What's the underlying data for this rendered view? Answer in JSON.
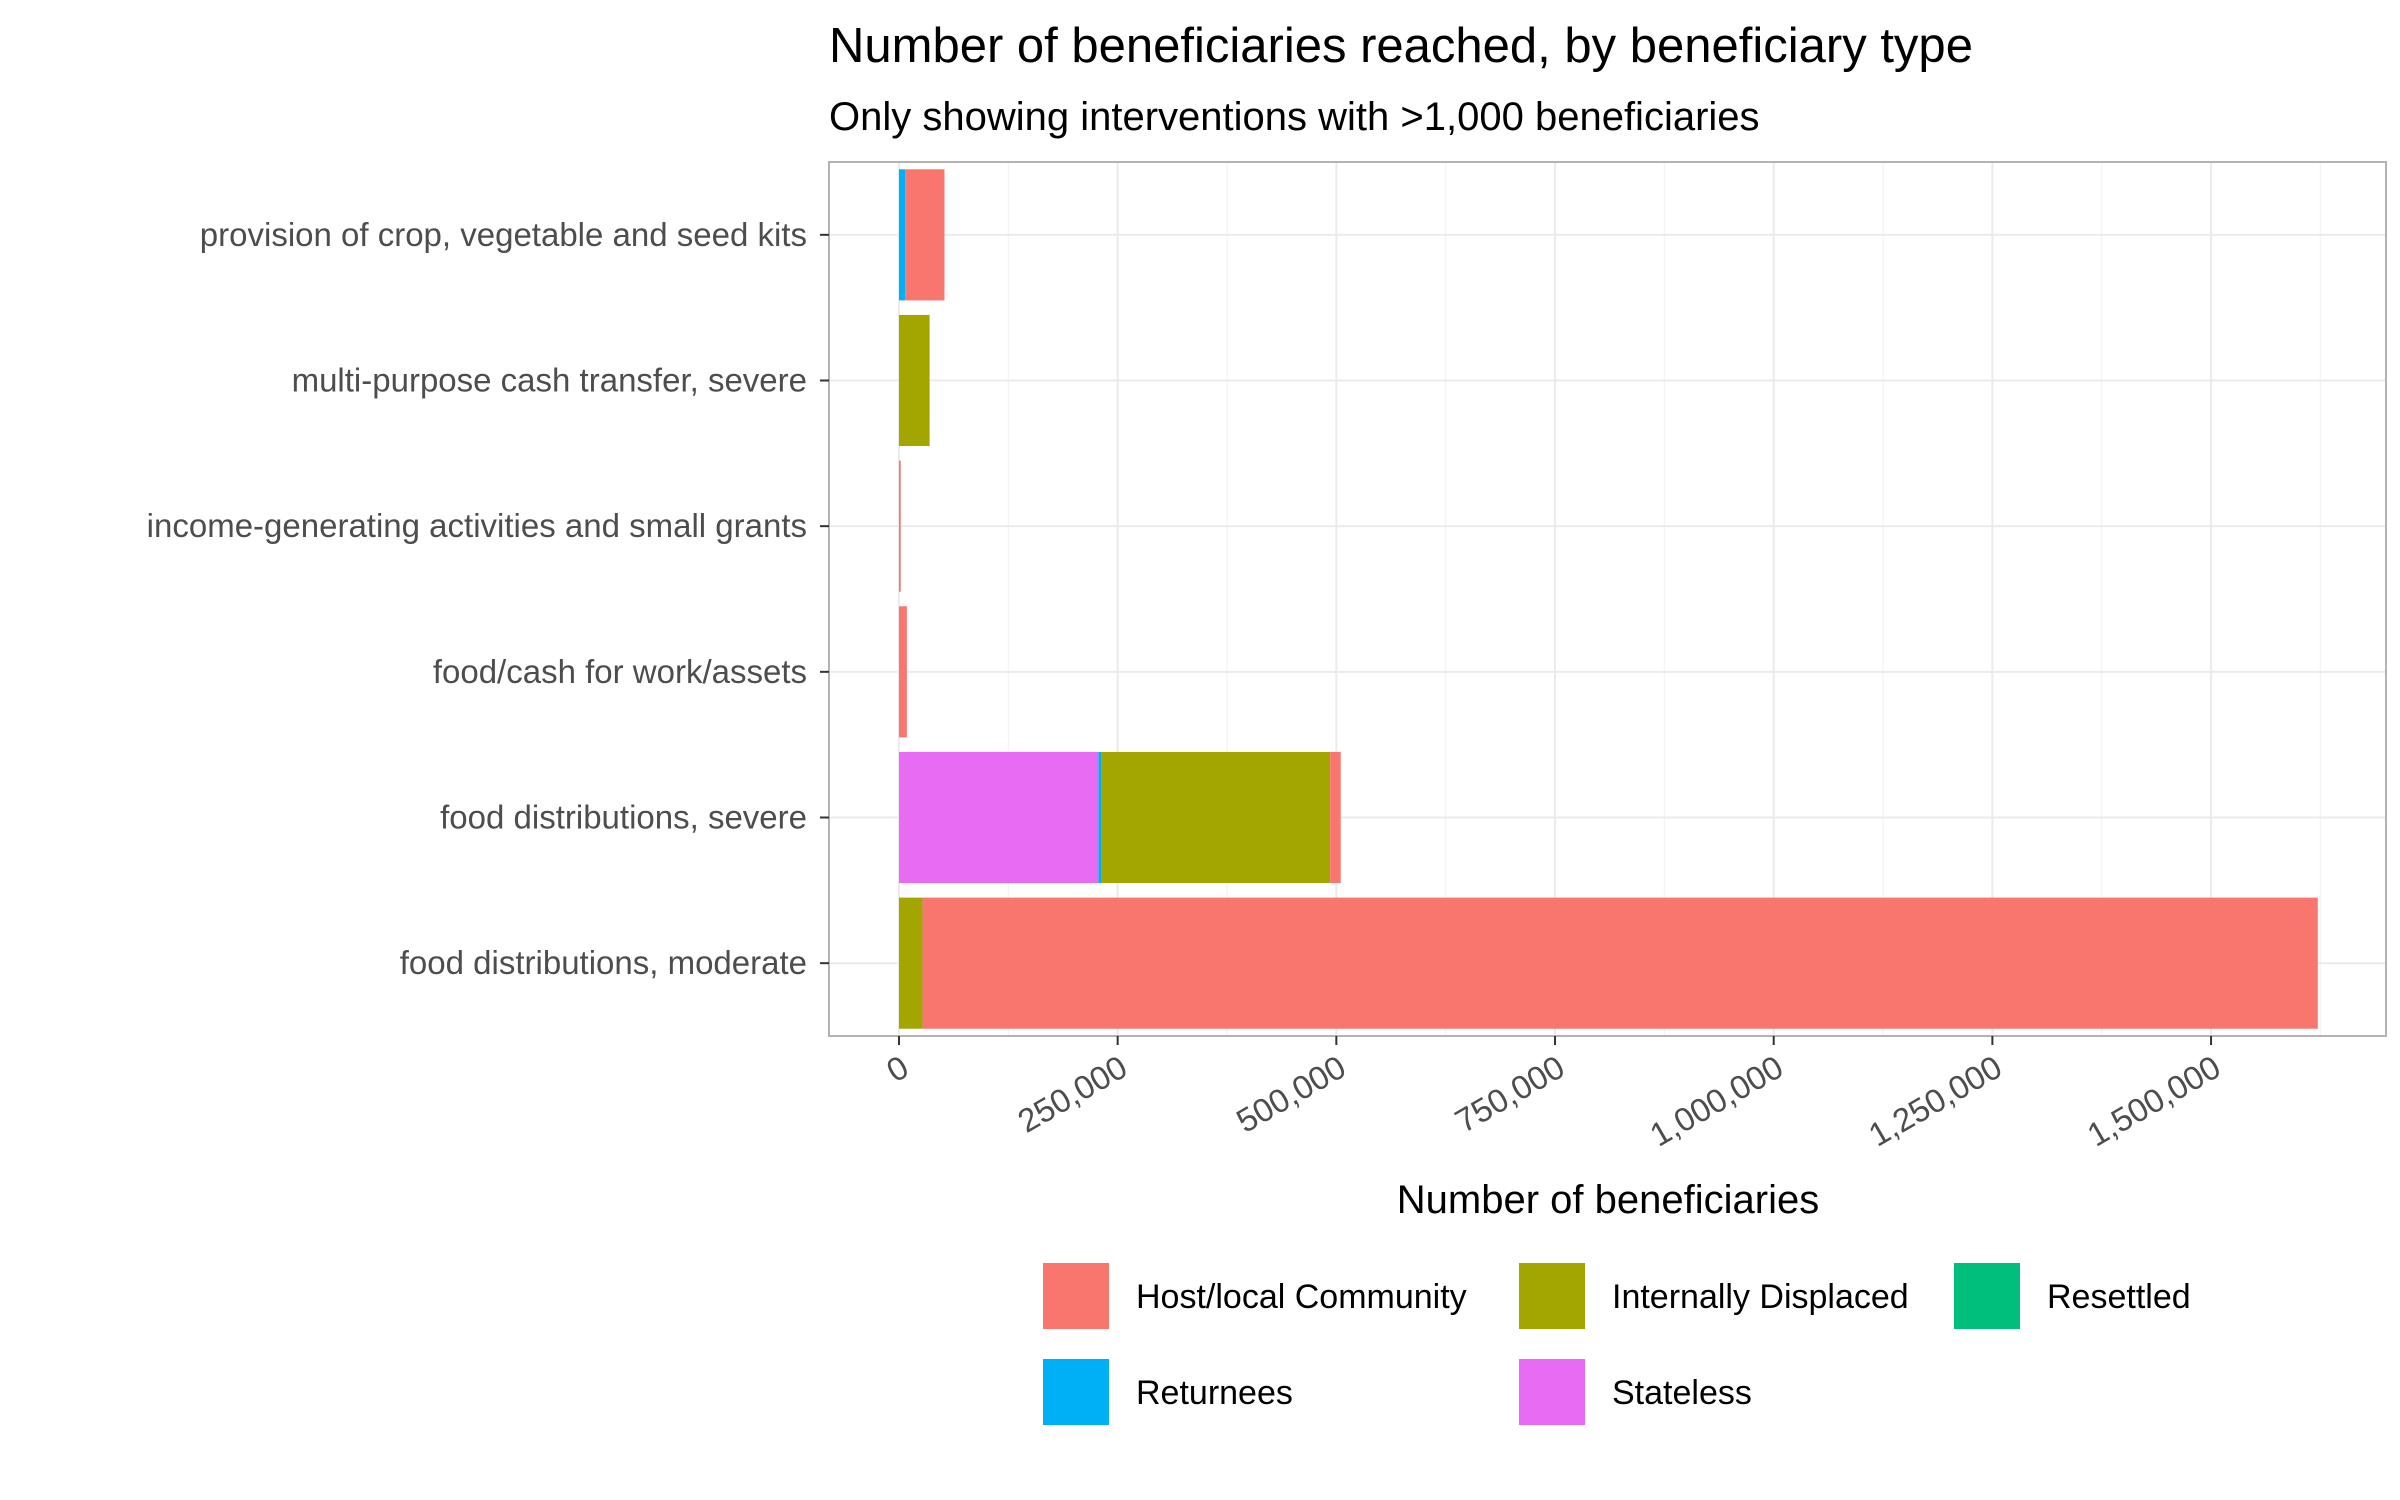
{
  "chart_data": {
    "type": "bar",
    "orientation": "horizontal",
    "stacked": true,
    "title": "Number of beneficiaries reached, by beneficiary type",
    "subtitle": "Only showing interventions with >1,000 beneficiaries",
    "xlabel": "Number of beneficiaries",
    "ylabel": "",
    "xlim": [
      -80000,
      1700000
    ],
    "x_ticks": [
      0,
      250000,
      500000,
      750000,
      1000000,
      1250000,
      1500000
    ],
    "x_tick_labels": [
      "0",
      "250,000",
      "500,000",
      "750,000",
      "1,000,000",
      "1,250,000",
      "1,500,000"
    ],
    "categories": [
      "provision of crop, vegetable and seed kits",
      "multi-purpose cash transfer, severe",
      "income-generating activities and small grants",
      "food/cash for work/assets",
      "food distributions, severe",
      "food distributions, moderate"
    ],
    "stack_order": [
      "Stateless",
      "Returnees",
      "Resettled",
      "Internally Displaced",
      "Host/local Community"
    ],
    "series": [
      {
        "name": "Host/local Community",
        "color": "#F8766D",
        "values": [
          45000,
          0,
          2000,
          9000,
          12000,
          1595000
        ]
      },
      {
        "name": "Internally Displaced",
        "color": "#A3A500",
        "values": [
          0,
          35000,
          0,
          0,
          262000,
          27000
        ]
      },
      {
        "name": "Resettled",
        "color": "#00BF7D",
        "values": [
          0,
          0,
          0,
          0,
          0,
          0
        ]
      },
      {
        "name": "Returnees",
        "color": "#00B0F6",
        "values": [
          7000,
          0,
          0,
          0,
          3000,
          0
        ]
      },
      {
        "name": "Stateless",
        "color": "#E76BF3",
        "values": [
          0,
          0,
          0,
          0,
          228000,
          0
        ]
      }
    ],
    "legend": {
      "position": "bottom",
      "order": [
        "Host/local Community",
        "Internally Displaced",
        "Resettled",
        "Returnees",
        "Stateless"
      ]
    },
    "grid": true
  }
}
